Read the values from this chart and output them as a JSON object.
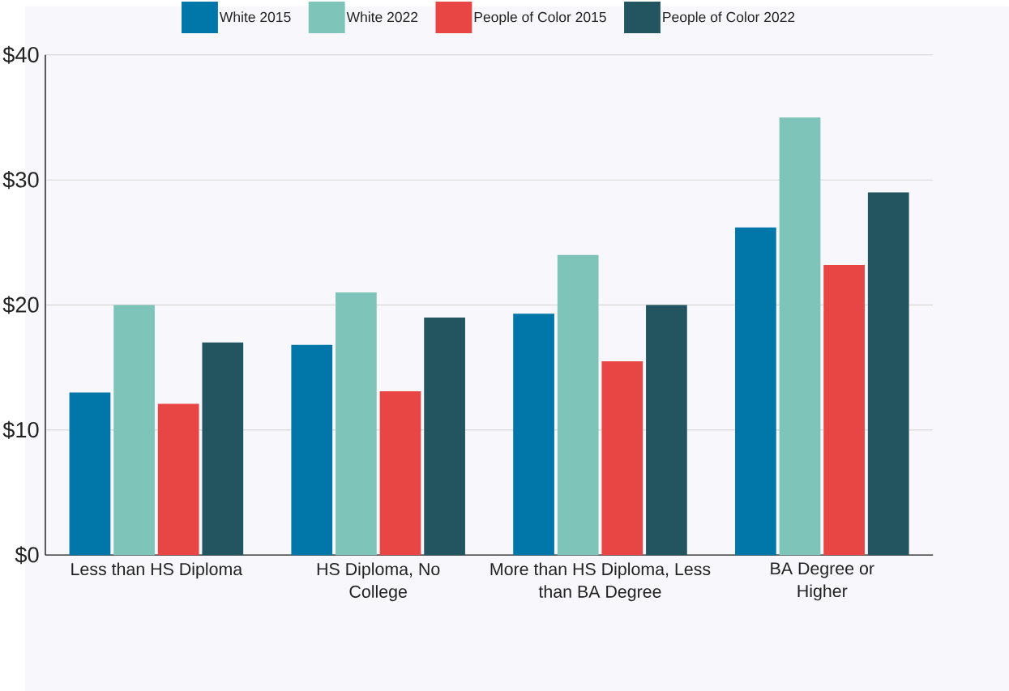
{
  "chart_data": {
    "type": "bar",
    "categories": [
      "Less than HS Diploma",
      "HS Diploma, No College",
      "More than HS Diploma, Less than BA Degree",
      "BA Degree or Higher"
    ],
    "series": [
      {
        "name": "White 2015",
        "color": "#0077a8",
        "values": [
          13,
          16.8,
          19.3,
          26.2
        ]
      },
      {
        "name": "White 2022",
        "color": "#7fc4b8",
        "values": [
          20,
          21,
          24,
          35
        ]
      },
      {
        "name": "People of Color 2015",
        "color": "#e84545",
        "values": [
          12.1,
          13.1,
          15.5,
          23.2
        ]
      },
      {
        "name": "People of Color 2022",
        "color": "#22555f",
        "values": [
          17,
          19,
          20,
          29
        ]
      }
    ],
    "ylim": [
      0,
      40
    ],
    "yticks": [
      {
        "value": 0,
        "label": "$0"
      },
      {
        "value": 10,
        "label": "$10"
      },
      {
        "value": 20,
        "label": "$20"
      },
      {
        "value": 30,
        "label": "$30"
      },
      {
        "value": 40,
        "label": "$40"
      }
    ],
    "grid": "y",
    "legend": "top"
  }
}
